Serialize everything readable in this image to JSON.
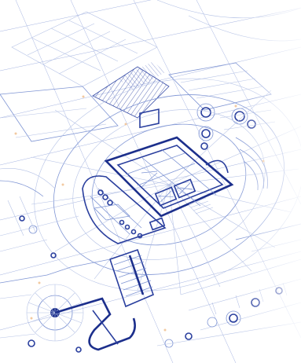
{
  "image": {
    "subject": "architectural-blueprint",
    "palette": {
      "background": "#ffffff",
      "line_light": "#b6c3e6",
      "line_mid": "#7f95d4",
      "line_dark": "#2a3f9e",
      "line_heavy": "#1c2f8c",
      "accent_dot": "#f2c9a0"
    }
  }
}
